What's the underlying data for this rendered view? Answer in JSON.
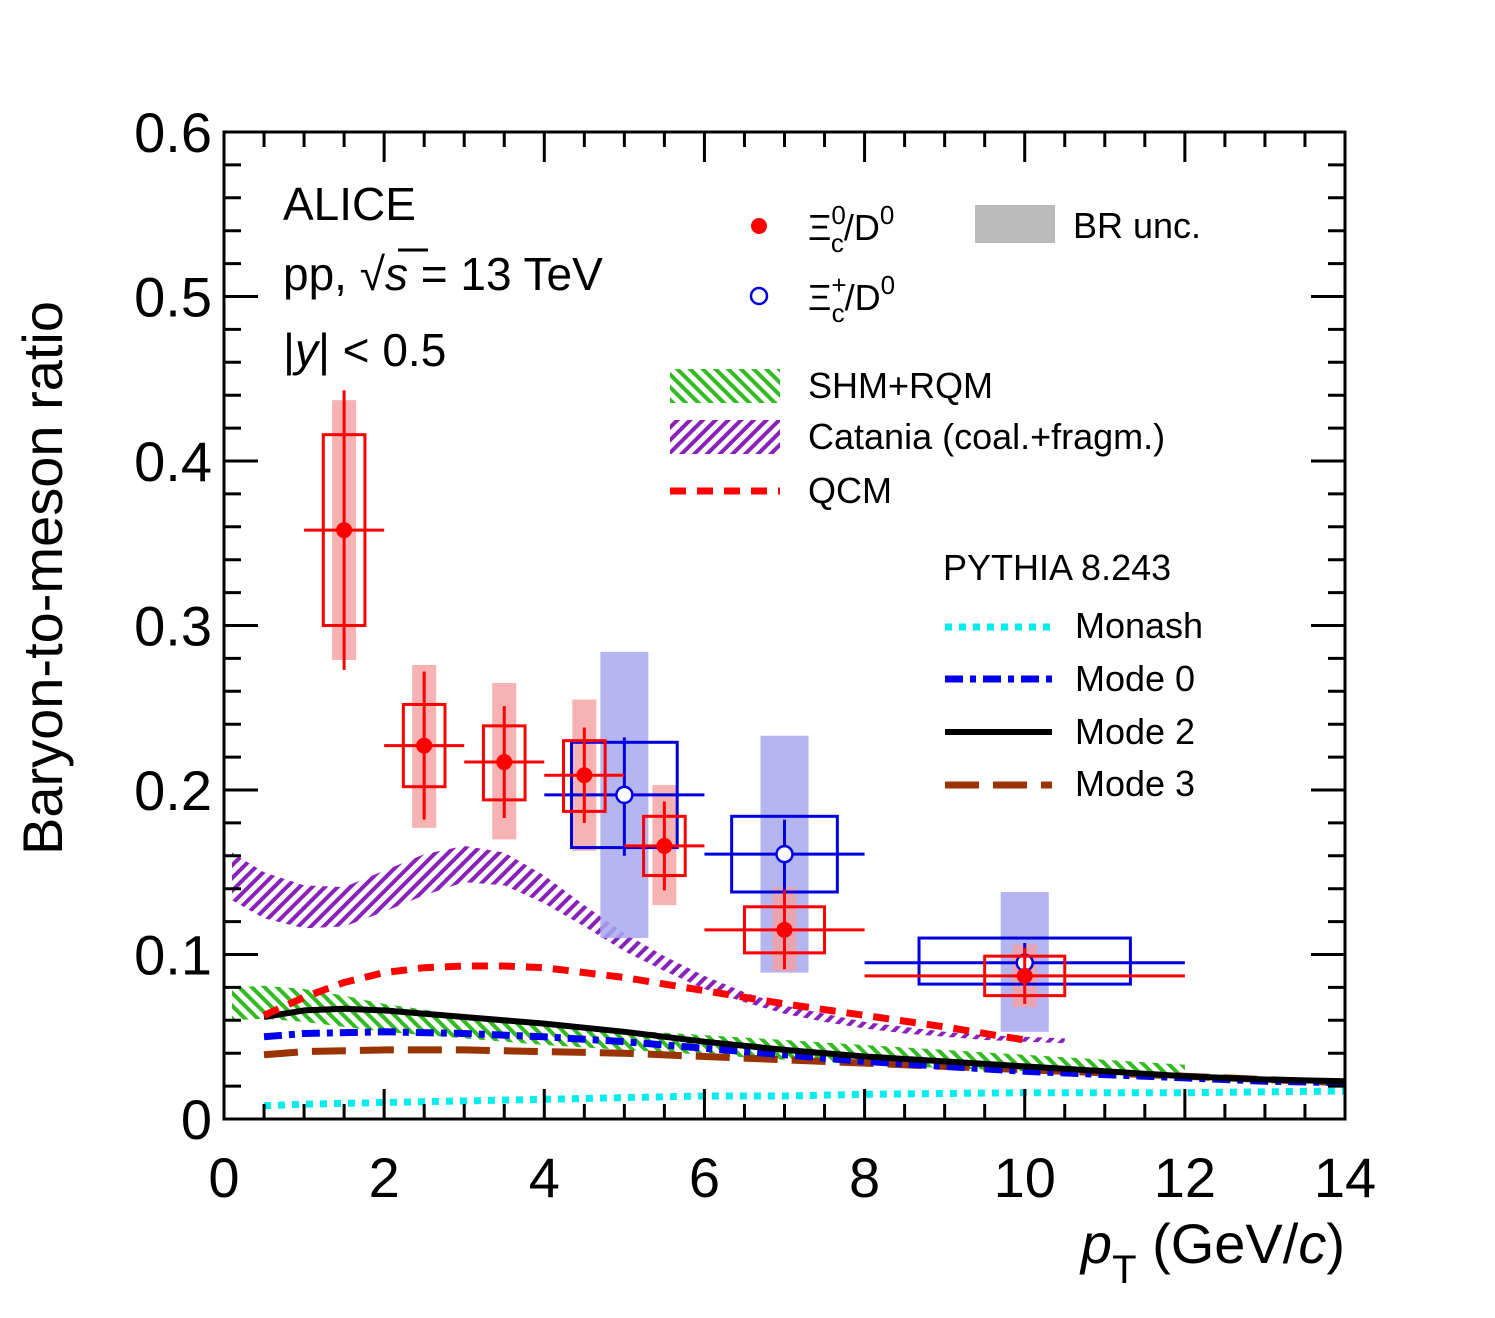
{
  "chart_data": {
    "type": "scatter",
    "xlabel": "p_T (GeV/c)",
    "xlabel_parts": {
      "p": "p",
      "sub": "T",
      "open": " (GeV/",
      "c": "c",
      "close": ")"
    },
    "ylabel": "Baryon-to-meson ratio",
    "xlim": [
      0,
      14
    ],
    "ylim": [
      0,
      0.6
    ],
    "xticks": [
      "0",
      "2",
      "4",
      "6",
      "8",
      "10",
      "12",
      "14"
    ],
    "yticks": [
      "0",
      "0.1",
      "0.2",
      "0.3",
      "0.4",
      "0.5",
      "0.6"
    ],
    "annotation": {
      "line1": "ALICE",
      "line2_pre": "pp, ",
      "line2_sqrt": "√",
      "line2_s": "s",
      "line2_post": " = 13 TeV",
      "line3_bar1": "|",
      "line3_y": "y",
      "line3_post": "| < 0.5"
    },
    "legend": {
      "xi0": {
        "sym": "Ξ",
        "sub": "c",
        "sup": "0",
        "den": "/D",
        "densup": "0"
      },
      "xip": {
        "sym": "Ξ",
        "sub": "c",
        "sup": "+",
        "den": "/D",
        "densup": "0"
      },
      "br": "BR unc.",
      "models": [
        "SHM+RQM",
        "Catania (coal.+fragm.)",
        "QCM"
      ],
      "pythia_title": "PYTHIA 8.243",
      "pythia": [
        "Monash",
        "Mode 0",
        "Mode 2",
        "Mode 3"
      ]
    },
    "colors": {
      "xi0": "#ff0000",
      "xi0_box_fill": "#f5a0a0",
      "xip": "#0000e0",
      "xip_box_fill": "#a8a8f0",
      "shm": "#33bb22",
      "catania": "#8822bb",
      "qcm": "#ff0000",
      "monash": "#00eeee",
      "mode0": "#0000ee",
      "mode2": "#000000",
      "mode3": "#993300",
      "br": "#bbbbbb"
    },
    "series": [
      {
        "name": "Xi_c^0/D^0",
        "marker": "filled-circle",
        "points": [
          {
            "x": 1.5,
            "y": 0.358,
            "xlo": 1.0,
            "xhi": 2.0,
            "stat": [
              0.273,
              0.443
            ],
            "syst": [
              0.3,
              0.416
            ],
            "br": [
              0.279,
              0.437
            ]
          },
          {
            "x": 2.5,
            "y": 0.227,
            "xlo": 2.0,
            "xhi": 3.0,
            "stat": [
              0.182,
              0.272
            ],
            "syst": [
              0.202,
              0.252
            ],
            "br": [
              0.177,
              0.276
            ]
          },
          {
            "x": 3.5,
            "y": 0.217,
            "xlo": 3.0,
            "xhi": 4.0,
            "stat": [
              0.183,
              0.251
            ],
            "syst": [
              0.194,
              0.239
            ],
            "br": [
              0.17,
              0.265
            ]
          },
          {
            "x": 4.5,
            "y": 0.209,
            "xlo": 4.0,
            "xhi": 5.0,
            "stat": [
              0.18,
              0.238
            ],
            "syst": [
              0.187,
              0.23
            ],
            "br": [
              0.163,
              0.255
            ]
          },
          {
            "x": 5.5,
            "y": 0.166,
            "xlo": 5.0,
            "xhi": 6.0,
            "stat": [
              0.139,
              0.193
            ],
            "syst": [
              0.148,
              0.184
            ],
            "br": [
              0.13,
              0.203
            ]
          },
          {
            "x": 7.0,
            "y": 0.115,
            "xlo": 6.0,
            "xhi": 8.0,
            "stat": [
              0.091,
              0.139
            ],
            "syst": [
              0.101,
              0.129
            ],
            "br": [
              0.09,
              0.141
            ]
          },
          {
            "x": 10.0,
            "y": 0.087,
            "xlo": 8.0,
            "xhi": 12.0,
            "stat": [
              0.07,
              0.104
            ],
            "syst": [
              0.075,
              0.099
            ],
            "br": [
              0.068,
              0.106
            ]
          }
        ]
      },
      {
        "name": "Xi_c^+/D^0",
        "marker": "open-circle",
        "points": [
          {
            "x": 5.0,
            "y": 0.197,
            "xlo": 4.0,
            "xhi": 6.0,
            "stat": [
              0.16,
              0.232
            ],
            "syst": [
              0.165,
              0.229
            ],
            "br": [
              0.11,
              0.284
            ]
          },
          {
            "x": 7.0,
            "y": 0.161,
            "xlo": 6.0,
            "xhi": 8.0,
            "stat": [
              0.139,
              0.182
            ],
            "syst": [
              0.138,
              0.184
            ],
            "br": [
              0.089,
              0.233
            ]
          },
          {
            "x": 10.0,
            "y": 0.095,
            "xlo": 8.0,
            "xhi": 12.0,
            "stat": [
              0.084,
              0.107
            ],
            "syst": [
              0.082,
              0.11
            ],
            "br": [
              0.053,
              0.138
            ]
          }
        ]
      }
    ],
    "models": {
      "shm_band": {
        "x": [
          0.1,
          0.5,
          1,
          1.5,
          2,
          3,
          4,
          5,
          6,
          7,
          8,
          9,
          10,
          11,
          12
        ],
        "lo": [
          0.06,
          0.061,
          0.059,
          0.056,
          0.053,
          0.049,
          0.045,
          0.042,
          0.039,
          0.036,
          0.033,
          0.031,
          0.029,
          0.027,
          0.025
        ],
        "hi": [
          0.08,
          0.081,
          0.079,
          0.075,
          0.07,
          0.063,
          0.058,
          0.054,
          0.051,
          0.048,
          0.045,
          0.042,
          0.039,
          0.036,
          0.033
        ]
      },
      "catania_band": {
        "x": [
          0.1,
          0.5,
          1,
          1.5,
          2,
          2.5,
          3,
          3.5,
          4,
          4.5,
          5,
          5.5,
          6,
          6.5,
          7,
          7.5,
          8,
          8.5,
          9,
          9.5,
          10,
          10.5
        ],
        "lo": [
          0.133,
          0.122,
          0.116,
          0.117,
          0.126,
          0.136,
          0.144,
          0.142,
          0.131,
          0.117,
          0.102,
          0.09,
          0.079,
          0.071,
          0.064,
          0.059,
          0.055,
          0.052,
          0.05,
          0.048,
          0.047,
          0.046
        ],
        "hi": [
          0.162,
          0.15,
          0.142,
          0.141,
          0.151,
          0.161,
          0.166,
          0.162,
          0.148,
          0.13,
          0.113,
          0.099,
          0.087,
          0.077,
          0.069,
          0.064,
          0.059,
          0.056,
          0.053,
          0.051,
          0.05,
          0.049
        ]
      },
      "qcm": {
        "x": [
          0.5,
          1,
          1.5,
          2,
          2.5,
          3,
          3.5,
          4,
          5,
          6,
          7,
          8,
          9,
          10
        ],
        "y": [
          0.063,
          0.074,
          0.083,
          0.089,
          0.092,
          0.093,
          0.093,
          0.092,
          0.086,
          0.078,
          0.07,
          0.063,
          0.056,
          0.048
        ]
      },
      "monash": {
        "x": [
          0.5,
          1,
          2,
          3,
          4,
          5,
          6,
          7,
          8,
          10,
          12,
          14
        ],
        "y": [
          0.008,
          0.009,
          0.01,
          0.011,
          0.012,
          0.013,
          0.014,
          0.014,
          0.015,
          0.016,
          0.016,
          0.017
        ]
      },
      "mode0": {
        "x": [
          0.5,
          1,
          2,
          3,
          4,
          5,
          6,
          7,
          8,
          9,
          10,
          11,
          12,
          13,
          14
        ],
        "y": [
          0.05,
          0.052,
          0.053,
          0.052,
          0.05,
          0.047,
          0.043,
          0.039,
          0.035,
          0.032,
          0.029,
          0.027,
          0.025,
          0.023,
          0.022
        ]
      },
      "mode2": {
        "x": [
          0.5,
          1,
          1.5,
          2,
          3,
          4,
          5,
          6,
          7,
          8,
          9,
          10,
          11,
          12,
          13,
          14
        ],
        "y": [
          0.062,
          0.066,
          0.067,
          0.066,
          0.062,
          0.058,
          0.053,
          0.047,
          0.042,
          0.038,
          0.035,
          0.032,
          0.029,
          0.026,
          0.024,
          0.023
        ]
      },
      "mode3": {
        "x": [
          0.5,
          1,
          2,
          3,
          4,
          5,
          6,
          7,
          8,
          9,
          10,
          11,
          12,
          13,
          14
        ],
        "y": [
          0.039,
          0.041,
          0.042,
          0.042,
          0.041,
          0.04,
          0.038,
          0.036,
          0.034,
          0.032,
          0.03,
          0.028,
          0.026,
          0.024,
          0.022
        ]
      }
    }
  }
}
